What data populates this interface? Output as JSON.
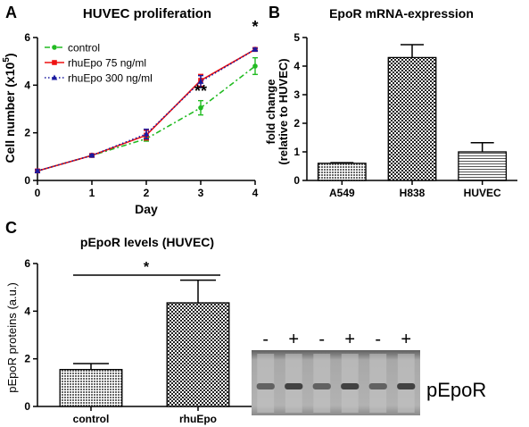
{
  "panels": {
    "a": {
      "letter": "A"
    },
    "b": {
      "letter": "B"
    },
    "c": {
      "letter": "C"
    }
  },
  "colors": {
    "control": "#22bb22",
    "rhuEpo75": "#ee1111",
    "rhuEpo300": "#1a1aa0",
    "bar_stroke": "#000000",
    "blot_band": "#1a1a1a",
    "blot_bg": "#9a9a9a"
  },
  "chart_data": [
    {
      "id": "a",
      "type": "line",
      "title": "HUVEC proliferation",
      "xlabel": "Day",
      "ylabel": "Cell number (x10",
      "ylabel_sup": "5",
      "ylabel_end": ")",
      "xlim": [
        0,
        4
      ],
      "ylim": [
        0,
        6
      ],
      "xticks": [
        0,
        1,
        2,
        3,
        4
      ],
      "yticks": [
        0,
        2,
        4,
        6
      ],
      "legend_position": "top-left",
      "series": [
        {
          "name": "control",
          "x": [
            0,
            1,
            2,
            3,
            4
          ],
          "values": [
            0.4,
            1.05,
            1.75,
            3.05,
            4.8
          ],
          "errors": [
            0.05,
            0.05,
            0.1,
            0.3,
            0.35
          ],
          "style": "dash-dot",
          "marker": "circle"
        },
        {
          "name": "rhuEpo 75 ng/ml",
          "x": [
            0,
            1,
            2,
            3,
            4
          ],
          "values": [
            0.4,
            1.05,
            1.9,
            4.2,
            5.5
          ],
          "errors": [
            0.05,
            0.05,
            0.2,
            0.25,
            0.05
          ],
          "style": "solid",
          "marker": "square"
        },
        {
          "name": "rhuEpo 300 ng/ml",
          "x": [
            0,
            1,
            2,
            3,
            4
          ],
          "values": [
            0.4,
            1.05,
            1.95,
            4.15,
            5.5
          ],
          "errors": [
            0.05,
            0.05,
            0.2,
            0.25,
            0.05
          ],
          "style": "dotted",
          "marker": "triangle"
        }
      ],
      "annotations": [
        {
          "text": "**",
          "x": 3
        },
        {
          "text": "*",
          "x": 4
        }
      ]
    },
    {
      "id": "b",
      "type": "bar",
      "title": "EpoR mRNA-expression",
      "ylabel_line1": "fold change",
      "ylabel_line2": "(relative to HUVEC)",
      "categories": [
        "A549",
        "H838",
        "HUVEC"
      ],
      "values": [
        0.6,
        4.3,
        1.0
      ],
      "errors": [
        0.02,
        0.45,
        0.32
      ],
      "patterns": [
        "dots",
        "checker",
        "hlines"
      ],
      "ylim": [
        0,
        5
      ],
      "yticks": [
        0,
        1,
        2,
        3,
        4,
        5
      ]
    },
    {
      "id": "c",
      "type": "bar",
      "title": "pEpoR levels (HUVEC)",
      "ylabel": "pEpoR proteins (a.u.)",
      "categories": [
        "control",
        "rhuEpo"
      ],
      "values": [
        1.55,
        4.35
      ],
      "errors": [
        0.25,
        0.95
      ],
      "patterns": [
        "dots",
        "checker"
      ],
      "ylim": [
        0,
        6
      ],
      "yticks": [
        0,
        2,
        4,
        6
      ],
      "significance": {
        "text": "*",
        "between": [
          0,
          1
        ]
      }
    }
  ],
  "blot": {
    "lanes": [
      "-",
      "+",
      "-",
      "+",
      "-",
      "+"
    ],
    "label": "pEpoR"
  }
}
